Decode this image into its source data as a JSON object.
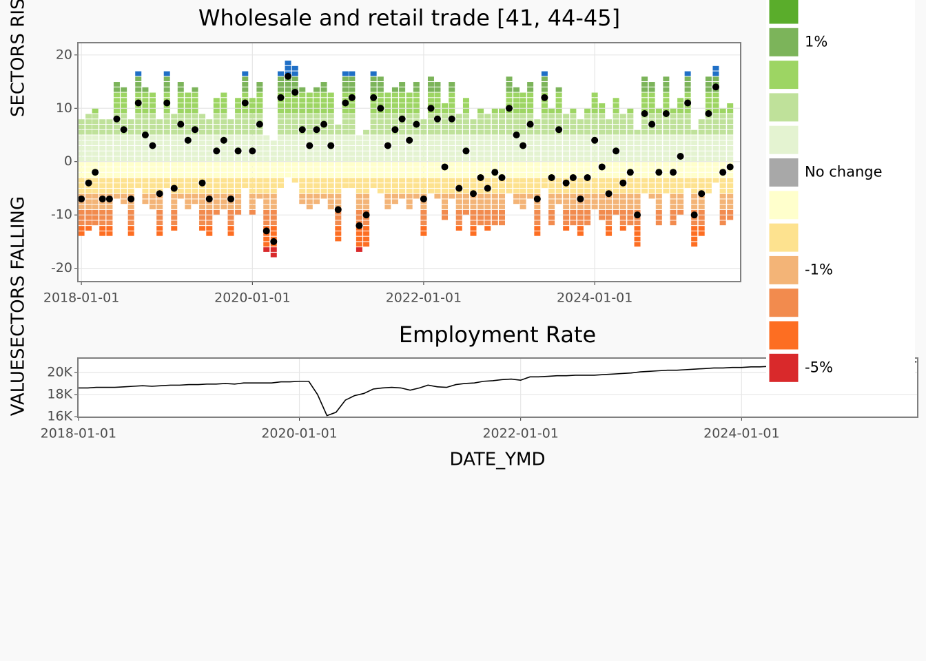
{
  "chart_data": [
    {
      "type": "tile",
      "title": "Wholesale and retail trade [41, 44-45]",
      "ylabel_top": "SECTORS RISING",
      "ylabel_bottom": "SECTORS FALLING",
      "x": [
        "2018-01-01",
        "2018-02-01",
        "2018-03-01",
        "2018-04-01",
        "2018-05-01",
        "2018-06-01",
        "2018-07-01",
        "2018-08-01",
        "2018-09-01",
        "2018-10-01",
        "2018-11-01",
        "2018-12-01",
        "2019-01-01",
        "2019-02-01",
        "2019-03-01",
        "2019-04-01",
        "2019-05-01",
        "2019-06-01",
        "2019-07-01",
        "2019-08-01",
        "2019-09-01",
        "2019-10-01",
        "2019-11-01",
        "2019-12-01",
        "2020-01-01",
        "2020-02-01",
        "2020-03-01",
        "2020-04-01",
        "2020-05-01",
        "2020-06-01",
        "2020-07-01",
        "2020-08-01",
        "2020-09-01",
        "2020-10-01",
        "2020-11-01",
        "2020-12-01",
        "2021-01-01",
        "2021-02-01",
        "2021-03-01",
        "2021-04-01",
        "2021-05-01",
        "2021-06-01",
        "2021-07-01",
        "2021-08-01",
        "2021-09-01",
        "2021-10-01",
        "2021-11-01",
        "2021-12-01",
        "2022-01-01",
        "2022-02-01",
        "2022-03-01",
        "2022-04-01",
        "2022-05-01",
        "2022-06-01",
        "2022-07-01",
        "2022-08-01",
        "2022-09-01",
        "2022-10-01",
        "2022-11-01",
        "2022-12-01",
        "2023-01-01",
        "2023-02-01",
        "2023-03-01",
        "2023-04-01",
        "2023-05-01",
        "2023-06-01",
        "2023-07-01",
        "2023-08-01",
        "2023-09-01",
        "2023-10-01",
        "2023-11-01",
        "2023-12-01",
        "2024-01-01",
        "2024-02-01",
        "2024-03-01",
        "2024-04-01",
        "2024-05-01",
        "2024-06-01",
        "2024-07-01",
        "2024-08-01",
        "2024-09-01",
        "2024-10-01",
        "2024-11-01",
        "2024-12-01",
        "2025-01-01",
        "2025-02-01",
        "2025-03-01",
        "2025-04-01",
        "2025-05-01",
        "2025-06-01",
        "2025-07-01",
        "2025-08-01"
      ],
      "rising": [
        8,
        9,
        10,
        8,
        8,
        15,
        14,
        8,
        17,
        14,
        13,
        8,
        17,
        9,
        15,
        13,
        14,
        9,
        8,
        12,
        13,
        8,
        12,
        17,
        12,
        15,
        5,
        4,
        17,
        19,
        18,
        14,
        13,
        14,
        15,
        13,
        7,
        17,
        17,
        5,
        6,
        17,
        16,
        13,
        14,
        15,
        13,
        15,
        8,
        16,
        15,
        11,
        15,
        9,
        12,
        8,
        10,
        9,
        10,
        10,
        16,
        14,
        13,
        15,
        8,
        17,
        10,
        14,
        9,
        10,
        8,
        10,
        13,
        11,
        8,
        12,
        9,
        10,
        6,
        16,
        15,
        10,
        16,
        10,
        12,
        17,
        6,
        8,
        16,
        18,
        10,
        11
      ],
      "falling": [
        -14,
        -13,
        -12,
        -14,
        -14,
        -7,
        -8,
        -14,
        -5,
        -8,
        -9,
        -14,
        -5,
        -13,
        -7,
        -9,
        -8,
        -13,
        -14,
        -10,
        -9,
        -14,
        -10,
        -5,
        -10,
        -7,
        -17,
        -18,
        -5,
        -3,
        -4,
        -8,
        -9,
        -8,
        -7,
        -9,
        -15,
        -5,
        -5,
        -17,
        -16,
        -5,
        -6,
        -9,
        -8,
        -7,
        -9,
        -7,
        -14,
        -6,
        -7,
        -11,
        -7,
        -13,
        -10,
        -14,
        -12,
        -13,
        -12,
        -12,
        -6,
        -8,
        -9,
        -7,
        -14,
        -5,
        -12,
        -8,
        -13,
        -12,
        -14,
        -12,
        -9,
        -11,
        -14,
        -10,
        -13,
        -12,
        -16,
        -6,
        -7,
        -12,
        -6,
        -12,
        -10,
        -5,
        -16,
        -14,
        -6,
        -4,
        -12,
        -11
      ],
      "net": [
        -7,
        -4,
        -2,
        -7,
        -7,
        8,
        6,
        -7,
        11,
        5,
        3,
        -6,
        11,
        -5,
        7,
        4,
        6,
        -4,
        -7,
        2,
        4,
        -7,
        2,
        11,
        2,
        7,
        -13,
        -15,
        12,
        16,
        13,
        6,
        3,
        6,
        7,
        3,
        -9,
        11,
        12,
        -12,
        -10,
        12,
        10,
        3,
        6,
        8,
        4,
        7,
        -7,
        10,
        8,
        -1,
        8,
        -5,
        2,
        -6,
        -3,
        -5,
        -2,
        -3,
        10,
        5,
        3,
        7,
        -7,
        12,
        -3,
        6,
        -4,
        -3,
        -7,
        -3,
        4,
        -1,
        -6,
        2,
        -4,
        -2,
        -10,
        9,
        7,
        -2,
        9,
        -2,
        1,
        11,
        -10,
        -6,
        9,
        14,
        -2,
        -1
      ],
      "xlim": [
        "2017-12-17",
        "2025-09-15"
      ],
      "xticks": [
        "2018-01-01",
        "2020-01-01",
        "2022-01-01",
        "2024-01-01"
      ],
      "ylim": [
        -22.5,
        22.3
      ],
      "yticks": [
        -20,
        -10,
        0,
        10,
        20
      ],
      "grid": true,
      "extreme_color": "#1f6fc6",
      "dot_color": "#000000",
      "legend": {
        "colors": [
          "#5aad2b",
          "#7cb45a",
          "#9dd563",
          "#bfe19a",
          "#e4f3d1",
          "#a8a8a8",
          "#ffffcc",
          "#fde28f",
          "#f3b477",
          "#f28b4e",
          "#fd6e22",
          "#d9292b"
        ],
        "labels": [
          null,
          "1%",
          null,
          null,
          null,
          "No change",
          null,
          null,
          "-1%",
          null,
          null,
          "-5%"
        ]
      }
    },
    {
      "type": "line",
      "title": "Employment Rate",
      "xlabel": "DATE_YMD",
      "ylabel": "VALUE",
      "color": "#000000",
      "x": [
        "2018-01-01",
        "2018-02-01",
        "2018-03-01",
        "2018-04-01",
        "2018-05-01",
        "2018-06-01",
        "2018-07-01",
        "2018-08-01",
        "2018-09-01",
        "2018-10-01",
        "2018-11-01",
        "2018-12-01",
        "2019-01-01",
        "2019-02-01",
        "2019-03-01",
        "2019-04-01",
        "2019-05-01",
        "2019-06-01",
        "2019-07-01",
        "2019-08-01",
        "2019-09-01",
        "2019-10-01",
        "2019-11-01",
        "2019-12-01",
        "2020-01-01",
        "2020-02-01",
        "2020-03-01",
        "2020-04-01",
        "2020-05-01",
        "2020-06-01",
        "2020-07-01",
        "2020-08-01",
        "2020-09-01",
        "2020-10-01",
        "2020-11-01",
        "2020-12-01",
        "2021-01-01",
        "2021-02-01",
        "2021-03-01",
        "2021-04-01",
        "2021-05-01",
        "2021-06-01",
        "2021-07-01",
        "2021-08-01",
        "2021-09-01",
        "2021-10-01",
        "2021-11-01",
        "2021-12-01",
        "2022-01-01",
        "2022-02-01",
        "2022-03-01",
        "2022-04-01",
        "2022-05-01",
        "2022-06-01",
        "2022-07-01",
        "2022-08-01",
        "2022-09-01",
        "2022-10-01",
        "2022-11-01",
        "2022-12-01",
        "2023-01-01",
        "2023-02-01",
        "2023-03-01",
        "2023-04-01",
        "2023-05-01",
        "2023-06-01",
        "2023-07-01",
        "2023-08-01",
        "2023-09-01",
        "2023-10-01",
        "2023-11-01",
        "2023-12-01",
        "2024-01-01",
        "2024-02-01",
        "2024-03-01",
        "2024-04-01",
        "2024-05-01",
        "2024-06-01",
        "2024-07-01",
        "2024-08-01",
        "2024-09-01",
        "2024-10-01",
        "2024-11-01",
        "2024-12-01",
        "2025-01-01",
        "2025-02-01",
        "2025-03-01",
        "2025-04-01",
        "2025-05-01",
        "2025-06-01",
        "2025-07-01",
        "2025-08-01"
      ],
      "values": [
        18600,
        18600,
        18650,
        18650,
        18650,
        18700,
        18750,
        18800,
        18750,
        18800,
        18850,
        18850,
        18900,
        18900,
        18950,
        18950,
        19000,
        18950,
        19050,
        19050,
        19050,
        19050,
        19150,
        19150,
        19200,
        19200,
        18000,
        16100,
        16400,
        17500,
        17900,
        18100,
        18500,
        18600,
        18650,
        18600,
        18400,
        18600,
        18850,
        18700,
        18650,
        18900,
        19000,
        19050,
        19200,
        19250,
        19350,
        19400,
        19300,
        19600,
        19600,
        19650,
        19700,
        19700,
        19750,
        19750,
        19750,
        19800,
        19850,
        19900,
        19950,
        20050,
        20100,
        20150,
        20200,
        20200,
        20250,
        20300,
        20350,
        20400,
        20400,
        20450,
        20450,
        20500,
        20500,
        20550,
        20600,
        20600,
        20650,
        20650,
        20700,
        20700,
        20750,
        20750,
        20800,
        20800,
        20850,
        20850,
        20900,
        20900,
        20950,
        20950
      ],
      "xlim": [
        "2017-12-30",
        "2025-08-05"
      ],
      "xticks": [
        "2018-01-01",
        "2020-01-01",
        "2022-01-01",
        "2024-01-01"
      ],
      "ylim": [
        15950,
        21300
      ],
      "yticks": [
        {
          "value": 16000,
          "label": "16K"
        },
        {
          "value": 18000,
          "label": "18K"
        },
        {
          "value": 20000,
          "label": "20K"
        }
      ],
      "grid": true
    }
  ]
}
